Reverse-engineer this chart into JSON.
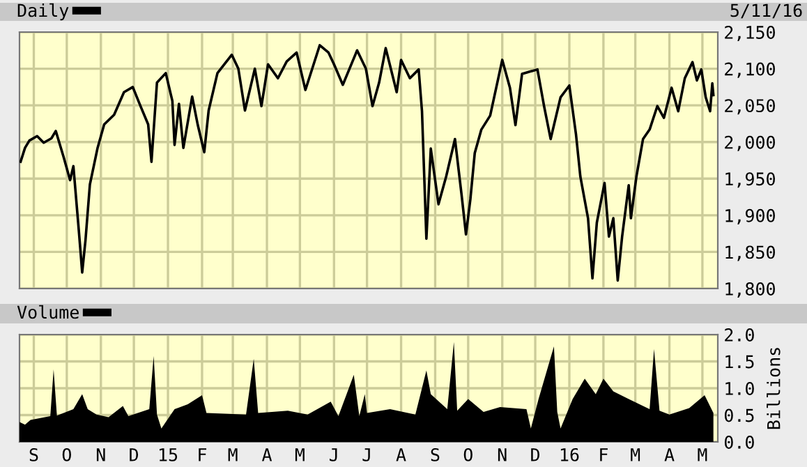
{
  "chart_data": [
    {
      "type": "line",
      "annotations": [
        "5/11/16"
      ],
      "legend": "top left",
      "grid": true,
      "tick_labels": "y",
      "xlim": [
        "2014-08-19",
        "2016-05-15"
      ],
      "ylim": [
        1800,
        2150
      ],
      "yticks": [
        {
          "value": 1800,
          "label": "1,800"
        },
        {
          "value": 1850,
          "label": "1,850"
        },
        {
          "value": 1900,
          "label": "1,900"
        },
        {
          "value": 1950,
          "label": "1,950"
        },
        {
          "value": 2000,
          "label": "2,000"
        },
        {
          "value": 2050,
          "label": "2,050"
        },
        {
          "value": 2100,
          "label": "2,100"
        },
        {
          "value": 2150,
          "label": "2,150"
        }
      ],
      "xticks": [
        {
          "value": "2014-09-01",
          "label": null
        },
        {
          "value": "2014-10-01",
          "label": null
        },
        {
          "value": "2014-11-01",
          "label": null
        },
        {
          "value": "2014-12-01",
          "label": null
        },
        {
          "value": "2015-01-01",
          "label": null
        },
        {
          "value": "2015-02-01",
          "label": null
        },
        {
          "value": "2015-03-01",
          "label": null
        },
        {
          "value": "2015-04-01",
          "label": null
        },
        {
          "value": "2015-05-01",
          "label": null
        },
        {
          "value": "2015-06-01",
          "label": null
        },
        {
          "value": "2015-07-01",
          "label": null
        },
        {
          "value": "2015-08-01",
          "label": null
        },
        {
          "value": "2015-09-01",
          "label": null
        },
        {
          "value": "2015-10-01",
          "label": null
        },
        {
          "value": "2015-11-01",
          "label": null
        },
        {
          "value": "2015-12-01",
          "label": null
        },
        {
          "value": "2016-01-01",
          "label": null
        },
        {
          "value": "2016-02-01",
          "label": null
        },
        {
          "value": "2016-03-01",
          "label": null
        },
        {
          "value": "2016-04-01",
          "label": null
        },
        {
          "value": "2016-05-01",
          "label": null
        }
      ],
      "series": [
        {
          "name": "Daily",
          "color": "#000000",
          "x": [
            "2014-08-20",
            "2014-08-24",
            "2014-08-28",
            "2014-09-04",
            "2014-09-10",
            "2014-09-17",
            "2014-09-21",
            "2014-09-28",
            "2014-10-04",
            "2014-10-07",
            "2014-10-12",
            "2014-10-15",
            "2014-10-18",
            "2014-10-22",
            "2014-10-29",
            "2014-11-04",
            "2014-11-13",
            "2014-11-22",
            "2014-11-30",
            "2014-12-07",
            "2014-12-14",
            "2014-12-17",
            "2014-12-22",
            "2014-12-30",
            "2015-01-05",
            "2015-01-07",
            "2015-01-11",
            "2015-01-15",
            "2015-01-23",
            "2015-01-28",
            "2015-02-03",
            "2015-02-07",
            "2015-02-15",
            "2015-02-28",
            "2015-03-06",
            "2015-03-12",
            "2015-03-21",
            "2015-03-27",
            "2015-04-02",
            "2015-04-11",
            "2015-04-19",
            "2015-04-28",
            "2015-05-06",
            "2015-05-19",
            "2015-05-27",
            "2015-06-01",
            "2015-06-09",
            "2015-06-22",
            "2015-06-30",
            "2015-07-06",
            "2015-07-12",
            "2015-07-18",
            "2015-07-28",
            "2015-08-01",
            "2015-08-09",
            "2015-08-17",
            "2015-08-20",
            "2015-08-24",
            "2015-08-28",
            "2015-09-04",
            "2015-09-11",
            "2015-09-19",
            "2015-09-25",
            "2015-09-29",
            "2015-10-03",
            "2015-10-07",
            "2015-10-13",
            "2015-10-21",
            "2015-11-01",
            "2015-11-08",
            "2015-11-13",
            "2015-11-19",
            "2015-12-03",
            "2015-12-09",
            "2015-12-15",
            "2015-12-24",
            "2016-01-01",
            "2016-01-07",
            "2016-01-11",
            "2016-01-18",
            "2016-01-22",
            "2016-01-26",
            "2016-02-02",
            "2016-02-06",
            "2016-02-10",
            "2016-02-14",
            "2016-02-18",
            "2016-02-24",
            "2016-02-26",
            "2016-03-02",
            "2016-03-08",
            "2016-03-14",
            "2016-03-21",
            "2016-03-27",
            "2016-04-03",
            "2016-04-09",
            "2016-04-15",
            "2016-04-22",
            "2016-04-26",
            "2016-04-30",
            "2016-05-04",
            "2016-05-08",
            "2016-05-10",
            "2016-05-11"
          ],
          "values": [
            1973,
            1992,
            2002,
            2008,
            1999,
            2005,
            2015,
            1980,
            1948,
            1967,
            1878,
            1822,
            1866,
            1942,
            1992,
            2024,
            2037,
            2068,
            2075,
            2049,
            2024,
            1973,
            2081,
            2094,
            2056,
            1996,
            2052,
            1992,
            2062,
            2024,
            1986,
            2043,
            2094,
            2119,
            2100,
            2043,
            2100,
            2049,
            2106,
            2087,
            2110,
            2122,
            2071,
            2132,
            2122,
            2106,
            2078,
            2125,
            2100,
            2049,
            2081,
            2128,
            2068,
            2112,
            2087,
            2099,
            2042,
            1868,
            1991,
            1915,
            1953,
            2004,
            1928,
            1874,
            1922,
            1985,
            2017,
            2036,
            2112,
            2074,
            2023,
            2093,
            2099,
            2049,
            2004,
            2061,
            2077,
            2011,
            1953,
            1896,
            1814,
            1890,
            1944,
            1871,
            1896,
            1811,
            1871,
            1941,
            1896,
            1953,
            2004,
            2017,
            2049,
            2033,
            2074,
            2042,
            2087,
            2109,
            2084,
            2099,
            2061,
            2042,
            2080,
            2064
          ]
        }
      ]
    },
    {
      "type": "area",
      "legend": "top left",
      "grid": true,
      "ylabel": "Billions",
      "xlim": [
        "2014-08-19",
        "2016-05-15"
      ],
      "ylim": [
        0,
        2
      ],
      "yticks": [
        {
          "value": 0,
          "label": "0.0"
        },
        {
          "value": 0.5,
          "label": "0.5"
        },
        {
          "value": 1,
          "label": "1.0"
        },
        {
          "value": 1.5,
          "label": "1.5"
        },
        {
          "value": 2,
          "label": "2.0"
        }
      ],
      "xticks": [
        {
          "value": "2014-09-01",
          "label": "S"
        },
        {
          "value": "2014-10-01",
          "label": "O"
        },
        {
          "value": "2014-11-01",
          "label": "N"
        },
        {
          "value": "2014-12-01",
          "label": "D"
        },
        {
          "value": "2015-01-01",
          "label": "15"
        },
        {
          "value": "2015-02-01",
          "label": "F"
        },
        {
          "value": "2015-03-01",
          "label": "M"
        },
        {
          "value": "2015-04-01",
          "label": "A"
        },
        {
          "value": "2015-05-01",
          "label": "M"
        },
        {
          "value": "2015-06-01",
          "label": "J"
        },
        {
          "value": "2015-07-01",
          "label": "J"
        },
        {
          "value": "2015-08-01",
          "label": "A"
        },
        {
          "value": "2015-09-01",
          "label": "S"
        },
        {
          "value": "2015-10-01",
          "label": "O"
        },
        {
          "value": "2015-11-01",
          "label": "N"
        },
        {
          "value": "2015-12-01",
          "label": "D"
        },
        {
          "value": "2016-01-01",
          "label": "16"
        },
        {
          "value": "2016-02-01",
          "label": "F"
        },
        {
          "value": "2016-03-01",
          "label": "M"
        },
        {
          "value": "2016-04-01",
          "label": "A"
        },
        {
          "value": "2016-05-01",
          "label": "M"
        }
      ],
      "series": [
        {
          "name": "Volume",
          "color": "#000000",
          "x": [
            "2014-08-19",
            "2014-08-24",
            "2014-08-29",
            "2014-09-16",
            "2014-09-19",
            "2014-09-22",
            "2014-10-07",
            "2014-10-15",
            "2014-10-20",
            "2014-10-28",
            "2014-11-08",
            "2014-11-21",
            "2014-11-26",
            "2014-12-15",
            "2014-12-19",
            "2014-12-22",
            "2014-12-26",
            "2015-01-07",
            "2015-01-19",
            "2015-02-01",
            "2015-02-05",
            "2015-03-13",
            "2015-03-20",
            "2015-03-24",
            "2015-04-20",
            "2015-05-08",
            "2015-05-29",
            "2015-06-05",
            "2015-06-19",
            "2015-06-24",
            "2015-06-29",
            "2015-07-01",
            "2015-07-22",
            "2015-08-14",
            "2015-08-24",
            "2015-08-28",
            "2015-09-12",
            "2015-09-18",
            "2015-09-21",
            "2015-10-01",
            "2015-10-15",
            "2015-10-30",
            "2015-11-23",
            "2015-11-27",
            "2015-12-04",
            "2015-12-18",
            "2015-12-21",
            "2015-12-24",
            "2016-01-04",
            "2016-01-15",
            "2016-01-25",
            "2016-02-01",
            "2016-02-10",
            "2016-02-24",
            "2016-03-14",
            "2016-03-18",
            "2016-03-23",
            "2016-04-01",
            "2016-04-19",
            "2016-05-03",
            "2016-05-11"
          ],
          "values": [
            0.37,
            0.32,
            0.41,
            0.48,
            1.35,
            0.49,
            0.61,
            0.89,
            0.61,
            0.51,
            0.46,
            0.67,
            0.48,
            0.61,
            1.6,
            0.51,
            0.25,
            0.61,
            0.7,
            0.87,
            0.54,
            0.51,
            1.55,
            0.54,
            0.58,
            0.51,
            0.75,
            0.48,
            1.25,
            0.48,
            0.89,
            0.54,
            0.61,
            0.51,
            1.33,
            0.89,
            0.61,
            1.86,
            0.58,
            0.8,
            0.56,
            0.65,
            0.61,
            0.25,
            0.8,
            1.78,
            0.56,
            0.25,
            0.8,
            1.18,
            0.89,
            1.18,
            0.94,
            0.8,
            0.61,
            1.73,
            0.58,
            0.51,
            0.63,
            0.87,
            0.54
          ]
        }
      ]
    }
  ]
}
